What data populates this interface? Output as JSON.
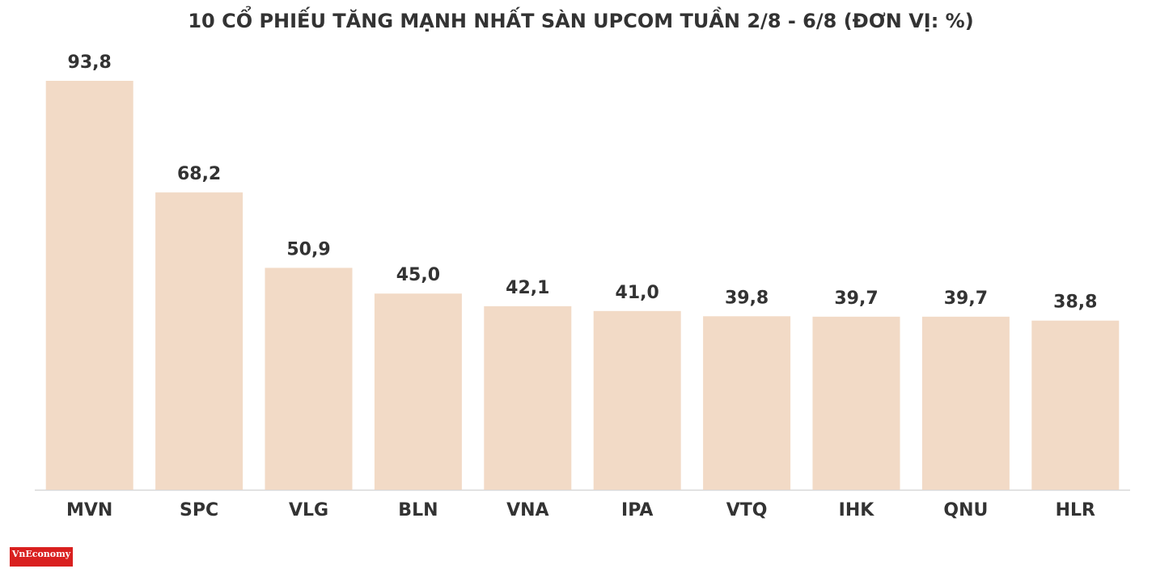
{
  "chart_data": {
    "type": "bar",
    "title": "10 CỔ PHIẾU TĂNG MẠNH NHẤT SÀN UPCOM TUẦN 2/8 - 6/8 (ĐƠN VỊ: %)",
    "categories": [
      "MVN",
      "SPC",
      "VLG",
      "BLN",
      "VNA",
      "IPA",
      "VTQ",
      "IHK",
      "QNU",
      "HLR"
    ],
    "values": [
      93.8,
      68.2,
      50.9,
      45.0,
      42.1,
      41.0,
      39.8,
      39.7,
      39.7,
      38.8
    ],
    "value_labels": [
      "93,8",
      "68,2",
      "50,9",
      "45,0",
      "42,1",
      "41,0",
      "39,8",
      "39,7",
      "39,7",
      "38,8"
    ],
    "color": "#f2dac6"
  },
  "logo": "VnEconomy"
}
